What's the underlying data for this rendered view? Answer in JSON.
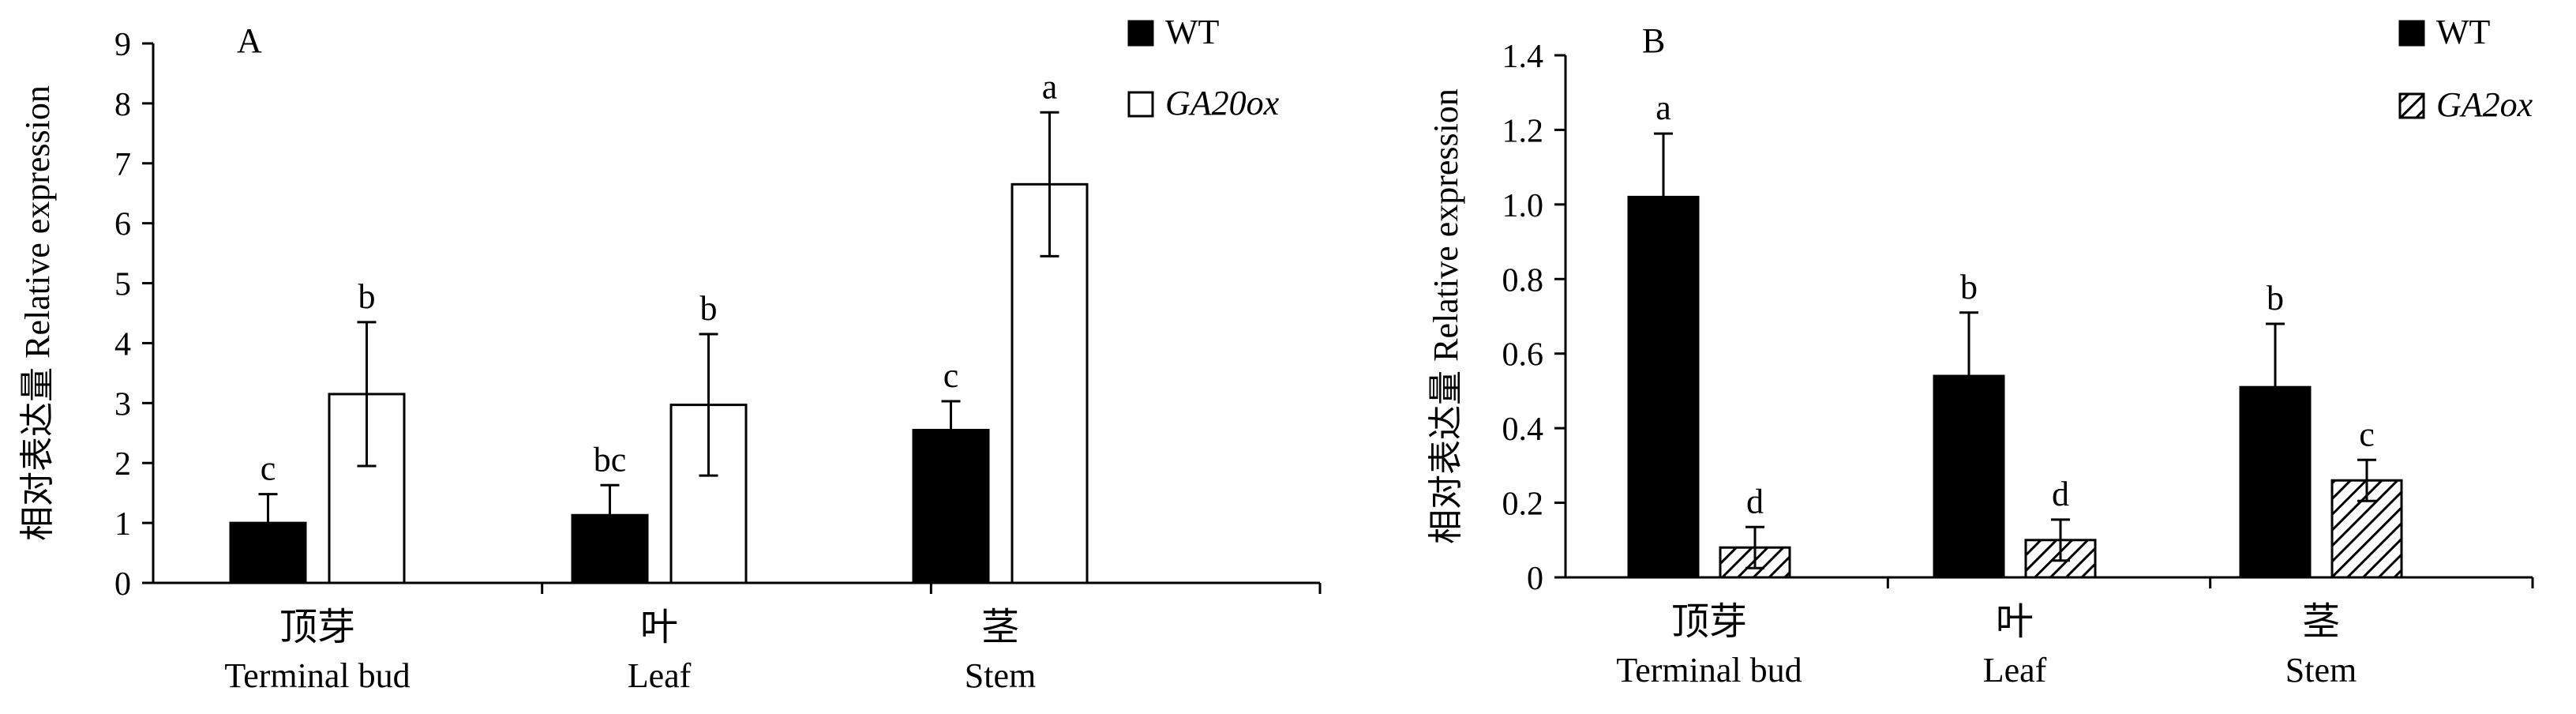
{
  "chart_data": [
    {
      "type": "bar",
      "panel_label": "A",
      "title": "",
      "ylabel": "相对表达量 Relative expression",
      "xlabel": "",
      "ylim": [
        0,
        9
      ],
      "yticks": [
        "0",
        "1",
        "2",
        "3",
        "4",
        "5",
        "6",
        "7",
        "8",
        "9"
      ],
      "categories": [
        {
          "zh": "顶芽",
          "en": "Terminal bud"
        },
        {
          "zh": "叶",
          "en": "Leaf"
        },
        {
          "zh": "茎",
          "en": "Stem"
        }
      ],
      "series": [
        {
          "name": "WT",
          "italic": false,
          "fill": "solid",
          "color": "#000000",
          "values": [
            1.0,
            1.13,
            2.55
          ],
          "errors": [
            0.48,
            0.5,
            0.48
          ],
          "letters": [
            "c",
            "bc",
            "c"
          ]
        },
        {
          "name": "GA20ox",
          "italic": true,
          "fill": "open",
          "color": "#ffffff",
          "values": [
            3.15,
            2.97,
            6.65
          ],
          "errors": [
            1.2,
            1.18,
            1.2
          ],
          "letters": [
            "b",
            "b",
            "a"
          ]
        }
      ],
      "legend_position": "top-right",
      "grid": false
    },
    {
      "type": "bar",
      "panel_label": "B",
      "title": "",
      "ylabel": "相对表达量 Relative expression",
      "xlabel": "",
      "ylim": [
        0,
        1.4
      ],
      "yticks": [
        "0",
        "0.2",
        "0.4",
        "0.6",
        "0.8",
        "1.0",
        "1.2",
        "1.4"
      ],
      "categories": [
        {
          "zh": "顶芽",
          "en": "Terminal bud"
        },
        {
          "zh": "叶",
          "en": "Leaf"
        },
        {
          "zh": "茎",
          "en": "Stem"
        }
      ],
      "series": [
        {
          "name": "WT",
          "italic": false,
          "fill": "solid",
          "color": "#000000",
          "values": [
            1.02,
            0.54,
            0.51
          ],
          "errors": [
            0.17,
            0.17,
            0.17
          ],
          "letters": [
            "a",
            "b",
            "b"
          ]
        },
        {
          "name": "GA2ox",
          "italic": true,
          "fill": "hatch",
          "color": "#ffffff",
          "values": [
            0.08,
            0.1,
            0.26
          ],
          "errors": [
            0.055,
            0.055,
            0.055
          ],
          "letters": [
            "d",
            "d",
            "c"
          ]
        }
      ],
      "legend_position": "top-right",
      "grid": false
    }
  ]
}
